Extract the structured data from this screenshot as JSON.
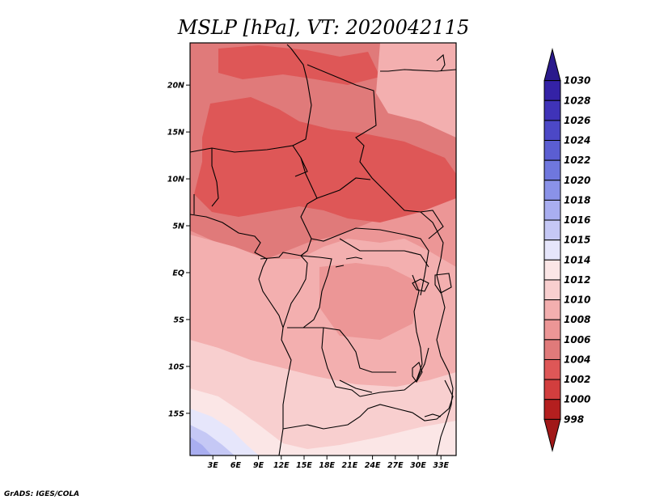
{
  "title": "MSLP [hPa], VT: 2020042115",
  "footer": "GrADS: IGES/COLA",
  "map": {
    "lat_labels": [
      "20N",
      "15N",
      "10N",
      "5N",
      "EQ",
      "5S",
      "10S",
      "15S"
    ],
    "lat_values": [
      20,
      15,
      10,
      5,
      0,
      -5,
      -10,
      -15
    ],
    "lon_labels": [
      "3E",
      "6E",
      "9E",
      "12E",
      "15E",
      "18E",
      "21E",
      "24E",
      "27E",
      "30E",
      "33E"
    ],
    "lon_values": [
      3,
      6,
      9,
      12,
      15,
      18,
      21,
      24,
      27,
      30,
      33
    ],
    "lon_range": [
      0,
      35
    ],
    "lat_range": [
      -19.5,
      24.5
    ]
  },
  "colorbar": {
    "labels": [
      "1030",
      "1028",
      "1026",
      "1024",
      "1022",
      "1020",
      "1018",
      "1016",
      "1015",
      "1014",
      "1012",
      "1010",
      "1008",
      "1006",
      "1004",
      "1002",
      "1000",
      "998"
    ],
    "colors": [
      "#2a1a8c",
      "#3422a6",
      "#3f33b8",
      "#4c48c6",
      "#5b5ed2",
      "#6f77de",
      "#8a92e8",
      "#a9aef0",
      "#c5c8f5",
      "#e6e6fb",
      "#fbe6e6",
      "#f8cfcf",
      "#f3afaf",
      "#ec9696",
      "#e07a7a",
      "#de5757",
      "#d23e3e",
      "#b41f1f",
      "#a11818"
    ]
  },
  "fields": {
    "pressure_bands_hpa": [
      1004,
      1006,
      1008,
      1010,
      1012,
      1014,
      1015,
      1016
    ]
  }
}
